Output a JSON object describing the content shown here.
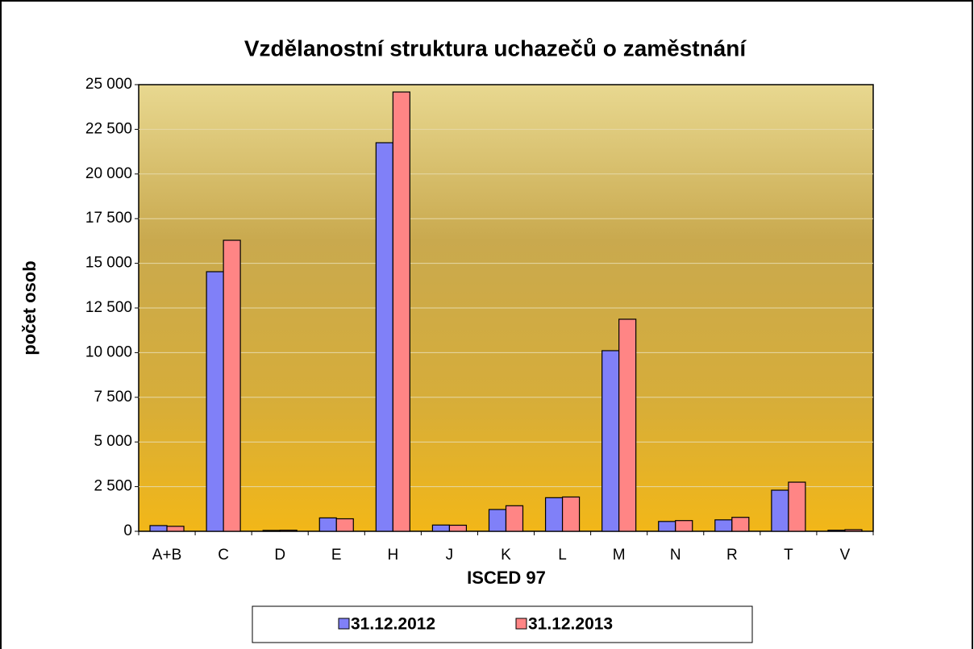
{
  "chart_data": {
    "type": "bar",
    "title": "Vzdělanostní struktura uchazečů o zaměstnání",
    "x_label": "ISCED 97",
    "y_label": "počet osob",
    "categories": [
      "A+B",
      "C",
      "D",
      "E",
      "H",
      "J",
      "K",
      "L",
      "M",
      "N",
      "R",
      "T",
      "V"
    ],
    "series": [
      {
        "name": "31.12.2012",
        "color": "#8080f8",
        "values": [
          320,
          14530,
          50,
          750,
          21750,
          350,
          1220,
          1880,
          10110,
          550,
          640,
          2300,
          60
        ]
      },
      {
        "name": "31.12.2013",
        "color": "#ff8585",
        "values": [
          280,
          16290,
          60,
          700,
          24590,
          340,
          1430,
          1920,
          11870,
          600,
          780,
          2750,
          90
        ]
      }
    ],
    "ylim": [
      0,
      25000
    ],
    "yticks": [
      0,
      {
        "value": 2500,
        "label": "2 500"
      },
      {
        "value": 5000,
        "label": "5 000"
      },
      {
        "value": 7500,
        "label": "7 500"
      },
      {
        "value": 10000,
        "label": "10 000"
      },
      {
        "value": 12500,
        "label": "12 500"
      },
      {
        "value": 15000,
        "label": "15 000"
      },
      {
        "value": 17500,
        "label": "17 500"
      },
      {
        "value": 20000,
        "label": "20 000"
      },
      {
        "value": 22500,
        "label": "22 500"
      },
      {
        "value": 25000,
        "label": "25 000"
      }
    ],
    "grid": true,
    "legend": "bottom"
  }
}
